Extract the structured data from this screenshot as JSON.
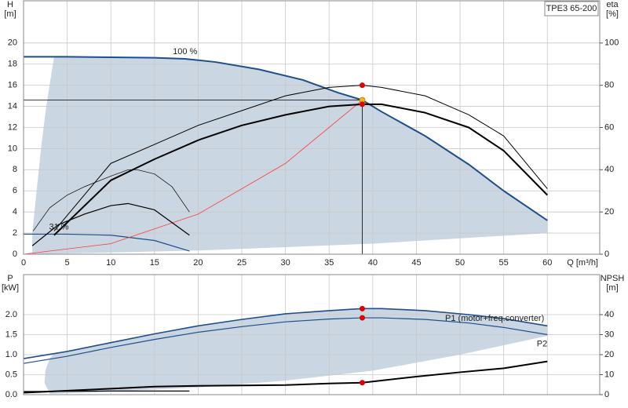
{
  "chart_data": [
    {
      "type": "line",
      "title": "TPE3 65-200",
      "xlabel": "Q [m³/h]",
      "ylabel": [
        "H",
        "[m]"
      ],
      "y2label": [
        "eta",
        "[%]"
      ],
      "xlim": [
        0,
        66
      ],
      "xticks": [
        0,
        5,
        10,
        15,
        20,
        25,
        30,
        35,
        40,
        45,
        50,
        55,
        60
      ],
      "xtick_labels": true,
      "ylim": [
        0,
        24
      ],
      "yticks": [
        0,
        2,
        4,
        6,
        8,
        10,
        12,
        14,
        16,
        18,
        20
      ],
      "y2lim": [
        0,
        120
      ],
      "y2ticks": [
        0,
        20,
        40,
        60,
        80,
        100
      ],
      "grid": true,
      "area": {
        "color": "#cad6e2",
        "x": [
          3.5,
          10,
          15,
          18.5,
          22,
          27,
          32,
          36,
          38.8,
          41,
          46,
          51,
          55,
          60,
          60,
          40,
          20,
          1,
          1,
          1.5,
          2,
          2.6
        ],
        "values": [
          18.7,
          18.65,
          18.6,
          18.5,
          18.2,
          17.5,
          16.5,
          15.3,
          14.6,
          13.5,
          11.2,
          8.5,
          6,
          3.2,
          2,
          1,
          0.35,
          0,
          2,
          6,
          10,
          14
        ]
      },
      "series": [
        {
          "name": "100 %",
          "color": "#1f4e8c",
          "linewidth": 2,
          "x": [
            0,
            5,
            10,
            15,
            18.5,
            22,
            27,
            32,
            36,
            38.8,
            41,
            46,
            51,
            55,
            60
          ],
          "values": [
            18.7,
            18.7,
            18.65,
            18.6,
            18.5,
            18.2,
            17.5,
            16.5,
            15.3,
            14.6,
            13.5,
            11.2,
            8.5,
            6,
            3.2
          ]
        },
        {
          "name": "31 %",
          "color": "#1f4e8c",
          "linewidth": 1.2,
          "x": [
            0,
            5,
            10,
            15,
            19
          ],
          "values": [
            1.9,
            1.9,
            1.8,
            1.3,
            0.3
          ]
        },
        {
          "color": "#ff3b3b",
          "linewidth": 0.8,
          "x": [
            0,
            10,
            20,
            30,
            38.8
          ],
          "values": [
            0,
            1,
            3.8,
            8.6,
            14.6
          ]
        },
        {
          "color": "#000000",
          "linewidth": 1,
          "axis": "y2",
          "x": [
            3.5,
            10,
            15,
            20,
            25,
            30,
            35,
            38.8,
            41,
            46,
            51,
            55,
            60
          ],
          "values": [
            11,
            43,
            52,
            61,
            68,
            75,
            79,
            80,
            79,
            75,
            66,
            56,
            31
          ]
        },
        {
          "color": "#000000",
          "linewidth": 2,
          "axis": "y2",
          "x": [
            3.5,
            10,
            15,
            20,
            25,
            30,
            35,
            38.8,
            41,
            46,
            51,
            55,
            60
          ],
          "values": [
            9,
            35,
            45,
            54,
            61,
            66,
            70,
            71,
            71,
            67,
            60,
            49,
            28
          ]
        },
        {
          "color": "#000000",
          "linewidth": 0.7,
          "axis": "y2",
          "x": [
            1.1,
            3,
            5,
            7,
            10,
            12,
            13,
            15,
            17,
            19
          ],
          "values": [
            11,
            22,
            28,
            32,
            37,
            40,
            40,
            38,
            32,
            20
          ]
        },
        {
          "color": "#000000",
          "linewidth": 1.2,
          "axis": "y2",
          "x": [
            1,
            4,
            7,
            10,
            12,
            15,
            17,
            19
          ],
          "values": [
            4,
            14,
            19,
            23,
            24,
            21,
            15,
            9
          ]
        }
      ],
      "markers": [
        {
          "x": 38.8,
          "value": 14.6,
          "color": "#f5b800"
        },
        {
          "x": 38.8,
          "value": 80,
          "axis": "y2",
          "color": "#e00000"
        },
        {
          "x": 38.8,
          "value": 71,
          "axis": "y2",
          "color": "#e00000"
        }
      ]
    },
    {
      "type": "line",
      "ylabel": [
        "P",
        "[kW]"
      ],
      "y2label": [
        "NPSH",
        "[m]"
      ],
      "xlim": [
        0,
        66
      ],
      "xticks": [
        0,
        5,
        10,
        15,
        20,
        25,
        30,
        35,
        40,
        45,
        50,
        55,
        60
      ],
      "xtick_labels": false,
      "ylim": [
        0,
        3
      ],
      "yticks": [
        {
          "value": 0,
          "label": "0.0"
        },
        {
          "value": 0.5,
          "label": "0.5"
        },
        {
          "value": 1,
          "label": "1.0"
        },
        {
          "value": 1.5,
          "label": "1.5"
        },
        {
          "value": 2,
          "label": "2.0"
        }
      ],
      "y2lim": [
        0,
        60
      ],
      "y2ticks": [
        0,
        10,
        20,
        30,
        40
      ],
      "grid": true,
      "area": {
        "color": "#cad6e2",
        "x": [
          3.5,
          5,
          10,
          15,
          20,
          25,
          30,
          35,
          38.8,
          41,
          46,
          51,
          55,
          60,
          60,
          50,
          40,
          30,
          20,
          10,
          3,
          2.4,
          2.5,
          3
        ],
        "values": [
          1.03,
          1.08,
          1.3,
          1.52,
          1.72,
          1.88,
          2.02,
          2.1,
          2.15,
          2.15,
          2.1,
          2.0,
          1.9,
          1.72,
          1.47,
          1.0,
          0.6,
          0.35,
          0.18,
          0.08,
          0.02,
          0.3,
          0.6,
          0.9
        ]
      },
      "series": [
        {
          "name": "P1 (motor+freq.converter)",
          "color": "#1f4e8c",
          "linewidth": 1.6,
          "x": [
            0,
            5,
            10,
            15,
            20,
            25,
            30,
            35,
            38.8,
            41,
            46,
            51,
            55,
            60
          ],
          "values": [
            0.9,
            1.08,
            1.3,
            1.52,
            1.72,
            1.88,
            2.02,
            2.1,
            2.15,
            2.15,
            2.1,
            2.0,
            1.9,
            1.72
          ]
        },
        {
          "name": "P2",
          "color": "#1f4e8c",
          "linewidth": 1.2,
          "x": [
            0,
            5,
            10,
            15,
            20,
            25,
            30,
            35,
            38.8,
            41,
            46,
            51,
            55,
            60
          ],
          "values": [
            0.78,
            0.96,
            1.18,
            1.38,
            1.56,
            1.7,
            1.82,
            1.89,
            1.92,
            1.92,
            1.88,
            1.79,
            1.68,
            1.5
          ]
        },
        {
          "color": "#000000",
          "linewidth": 2,
          "axis": "y2",
          "x": [
            0,
            10,
            15,
            20,
            30,
            35,
            38.8,
            45,
            50,
            55,
            60
          ],
          "values": [
            1,
            3,
            4,
            4.4,
            4.8,
            5.6,
            6,
            9,
            11.2,
            13.2,
            16.6
          ]
        },
        {
          "color": "#000000",
          "linewidth": 1.2,
          "x": [
            0,
            10,
            19
          ],
          "values": [
            0.08,
            0.09,
            0.09
          ]
        }
      ],
      "markers": [
        {
          "x": 38.8,
          "value": 2.15,
          "color": "#e00000"
        },
        {
          "x": 38.8,
          "value": 1.92,
          "color": "#e00000"
        },
        {
          "x": 38.8,
          "value": 6,
          "axis": "y2",
          "color": "#e00000"
        }
      ]
    }
  ]
}
